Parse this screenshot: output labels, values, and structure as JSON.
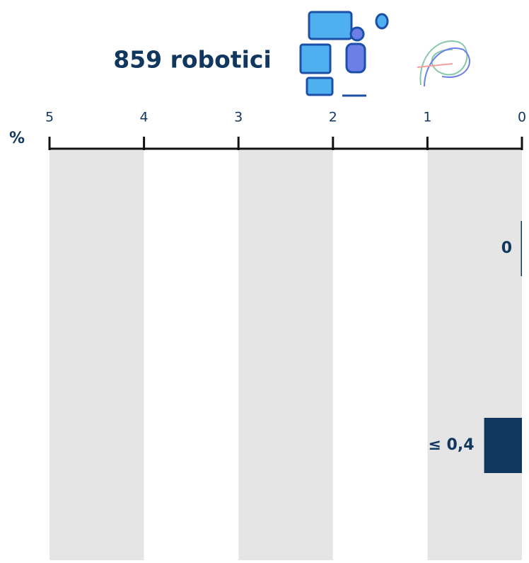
{
  "chart_data": {
    "type": "barh",
    "title": "859 robotici",
    "x_label": "%",
    "categories": [
      null,
      null
    ],
    "values": [
      0,
      0.4
    ],
    "value_labels": [
      "0",
      "≤ 0,4"
    ],
    "color": "#12375f",
    "xlim": [
      5,
      0
    ],
    "xticks": [
      5,
      4,
      3,
      2,
      1,
      0
    ],
    "grid": true
  }
}
